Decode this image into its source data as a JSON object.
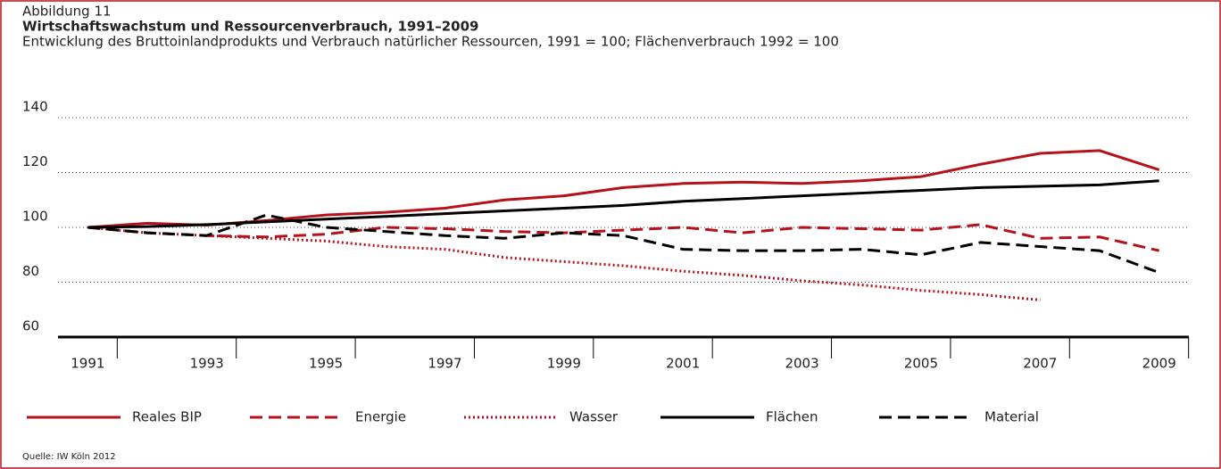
{
  "chart_data": {
    "type": "line",
    "figure_label": "Abbildung 11",
    "title": "Wirtschaftswachstum und Ressourcenverbrauch, 1991–2009",
    "subtitle": "Entwicklung des Bruttoinlandprodukts und Verbrauch natürlicher Ressourcen, 1991 = 100; Flächenverbrauch 1992 = 100",
    "source": "Quelle: IW Köln 2012",
    "x": [
      1991,
      1992,
      1993,
      1994,
      1995,
      1996,
      1997,
      1998,
      1999,
      2000,
      2001,
      2002,
      2003,
      2004,
      2005,
      2006,
      2007,
      2008,
      2009
    ],
    "xlim": [
      1990.5,
      2009.5
    ],
    "xticks": [
      1991,
      1993,
      1995,
      1997,
      1999,
      2001,
      2003,
      2005,
      2007,
      2009
    ],
    "ylim": [
      60,
      140
    ],
    "yticks": [
      60,
      80,
      100,
      120,
      140
    ],
    "grid": true,
    "legend": "bottom",
    "series": [
      {
        "name": "Reales BIP",
        "color": "#b5121b",
        "dash": "solid",
        "values": [
          100,
          101.5,
          100.8,
          102.5,
          104.5,
          105.5,
          107,
          110,
          111.5,
          114.5,
          116,
          116.5,
          116,
          117,
          118.5,
          123,
          127,
          128,
          121
        ]
      },
      {
        "name": "Energie",
        "color": "#b5121b",
        "dash": "dashed",
        "values": [
          100,
          98,
          97,
          96.5,
          97.5,
          100,
          99.5,
          98.5,
          98,
          99,
          100,
          98,
          100,
          99.5,
          99,
          101,
          96,
          96.5,
          91.5
        ]
      },
      {
        "name": "Wasser",
        "color": "#b5121b",
        "dash": "dotted",
        "values": [
          100,
          98,
          97,
          96,
          95,
          93,
          92,
          89,
          87.5,
          86,
          84,
          82.5,
          80.5,
          79,
          77,
          75.5,
          73.5,
          null,
          null
        ]
      },
      {
        "name": "Flächen",
        "color": "#000000",
        "dash": "solid",
        "values": [
          100,
          100.3,
          101,
          102,
          103,
          104,
          105,
          106,
          107,
          108,
          109.5,
          110.5,
          111.5,
          112.5,
          113.5,
          114.5,
          115,
          115.5,
          117
        ]
      },
      {
        "name": "Material",
        "color": "#000000",
        "dash": "dashed",
        "values": [
          100,
          98,
          97,
          104.5,
          100,
          98.5,
          97,
          96,
          98,
          97,
          92,
          91.5,
          91.5,
          92,
          90,
          94.5,
          93,
          91.5,
          83.5
        ]
      }
    ]
  }
}
